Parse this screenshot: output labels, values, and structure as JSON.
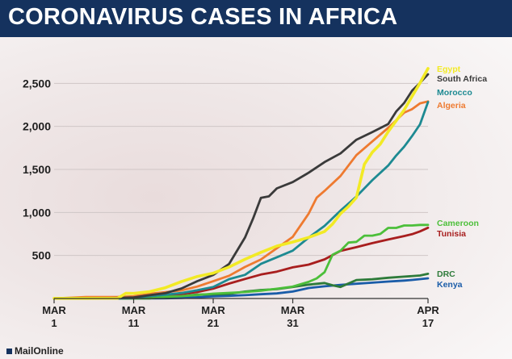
{
  "header": {
    "title": "CORONAVIRUS CASES IN AFRICA"
  },
  "credit": {
    "source": "MailOnline"
  },
  "chart_data": {
    "type": "line",
    "title": "CORONAVIRUS CASES IN AFRICA",
    "xlabel": "",
    "ylabel": "",
    "x_ticks": [
      {
        "day": 1,
        "line1": "MAR",
        "line2": "1"
      },
      {
        "day": 11,
        "line1": "MAR",
        "line2": "11"
      },
      {
        "day": 21,
        "line1": "MAR",
        "line2": "21"
      },
      {
        "day": 31,
        "line1": "MAR",
        "line2": "31"
      },
      {
        "day": 48,
        "line1": "APR",
        "line2": "17"
      }
    ],
    "y_ticks": [
      {
        "value": 500,
        "label": "500"
      },
      {
        "value": 1000,
        "label": "1,000"
      },
      {
        "value": 1500,
        "label": "1,500"
      },
      {
        "value": 2000,
        "label": "2,000"
      },
      {
        "value": 2500,
        "label": "2,500"
      }
    ],
    "xlim": [
      1,
      48
    ],
    "ylim": [
      0,
      2700
    ],
    "grid": true,
    "series": [
      {
        "name": "Egypt",
        "color": "#f2ea25",
        "points": [
          [
            1,
            2
          ],
          [
            5,
            2
          ],
          [
            9,
            3
          ],
          [
            10,
            60
          ],
          [
            11,
            59
          ],
          [
            13,
            80
          ],
          [
            15,
            126
          ],
          [
            17,
            196
          ],
          [
            19,
            256
          ],
          [
            21,
            294
          ],
          [
            23,
            366
          ],
          [
            25,
            456
          ],
          [
            27,
            536
          ],
          [
            29,
            609
          ],
          [
            31,
            656
          ],
          [
            33,
            710
          ],
          [
            35,
            779
          ],
          [
            36,
            865
          ],
          [
            37,
            985
          ],
          [
            38,
            1070
          ],
          [
            39,
            1173
          ],
          [
            40,
            1560
          ],
          [
            41,
            1699
          ],
          [
            42,
            1794
          ],
          [
            43,
            1939
          ],
          [
            44,
            2065
          ],
          [
            45,
            2190
          ],
          [
            46,
            2350
          ],
          [
            47,
            2505
          ],
          [
            48,
            2673
          ]
        ]
      },
      {
        "name": "South Africa",
        "color": "#3a3a3a",
        "points": [
          [
            1,
            0
          ],
          [
            5,
            1
          ],
          [
            9,
            7
          ],
          [
            11,
            13
          ],
          [
            13,
            38
          ],
          [
            15,
            62
          ],
          [
            17,
            116
          ],
          [
            19,
            202
          ],
          [
            21,
            274
          ],
          [
            23,
            402
          ],
          [
            25,
            709
          ],
          [
            26,
            927
          ],
          [
            27,
            1170
          ],
          [
            28,
            1187
          ],
          [
            29,
            1280
          ],
          [
            31,
            1353
          ],
          [
            33,
            1462
          ],
          [
            35,
            1585
          ],
          [
            37,
            1686
          ],
          [
            39,
            1845
          ],
          [
            41,
            1934
          ],
          [
            43,
            2028
          ],
          [
            44,
            2173
          ],
          [
            45,
            2272
          ],
          [
            46,
            2415
          ],
          [
            47,
            2506
          ],
          [
            48,
            2605
          ]
        ]
      },
      {
        "name": "Morocco",
        "color": "#1d8a92",
        "points": [
          [
            1,
            0
          ],
          [
            3,
            1
          ],
          [
            9,
            2
          ],
          [
            11,
            7
          ],
          [
            13,
            28
          ],
          [
            15,
            44
          ],
          [
            17,
            64
          ],
          [
            19,
            96
          ],
          [
            21,
            134
          ],
          [
            23,
            225
          ],
          [
            25,
            275
          ],
          [
            27,
            402
          ],
          [
            29,
            479
          ],
          [
            31,
            556
          ],
          [
            33,
            708
          ],
          [
            35,
            844
          ],
          [
            37,
            1021
          ],
          [
            39,
            1184
          ],
          [
            41,
            1374
          ],
          [
            43,
            1545
          ],
          [
            44,
            1661
          ],
          [
            45,
            1763
          ],
          [
            46,
            1888
          ],
          [
            47,
            2024
          ],
          [
            48,
            2283
          ]
        ]
      },
      {
        "name": "Algeria",
        "color": "#ee7a30",
        "points": [
          [
            1,
            1
          ],
          [
            5,
            17
          ],
          [
            9,
            19
          ],
          [
            11,
            25
          ],
          [
            13,
            54
          ],
          [
            15,
            74
          ],
          [
            17,
            94
          ],
          [
            19,
            139
          ],
          [
            21,
            201
          ],
          [
            23,
            264
          ],
          [
            25,
            367
          ],
          [
            27,
            454
          ],
          [
            29,
            584
          ],
          [
            31,
            716
          ],
          [
            33,
            986
          ],
          [
            34,
            1171
          ],
          [
            35,
            1251
          ],
          [
            37,
            1423
          ],
          [
            39,
            1666
          ],
          [
            41,
            1825
          ],
          [
            43,
            1983
          ],
          [
            44,
            2070
          ],
          [
            45,
            2160
          ],
          [
            46,
            2200
          ],
          [
            47,
            2268
          ],
          [
            48,
            2290
          ]
        ]
      },
      {
        "name": "Cameroon",
        "color": "#4cbf3a",
        "points": [
          [
            1,
            0
          ],
          [
            5,
            1
          ],
          [
            13,
            2
          ],
          [
            15,
            20
          ],
          [
            17,
            27
          ],
          [
            19,
            40
          ],
          [
            21,
            56
          ],
          [
            23,
            66
          ],
          [
            25,
            75
          ],
          [
            27,
            91
          ],
          [
            29,
            113
          ],
          [
            31,
            139
          ],
          [
            33,
            193
          ],
          [
            34,
            233
          ],
          [
            35,
            306
          ],
          [
            36,
            509
          ],
          [
            37,
            555
          ],
          [
            38,
            650
          ],
          [
            39,
            658
          ],
          [
            40,
            730
          ],
          [
            41,
            730
          ],
          [
            42,
            750
          ],
          [
            43,
            820
          ],
          [
            44,
            820
          ],
          [
            45,
            848
          ],
          [
            46,
            848
          ],
          [
            47,
            855
          ],
          [
            48,
            855
          ]
        ]
      },
      {
        "name": "Tunisia",
        "color": "#a81e1e",
        "points": [
          [
            1,
            0
          ],
          [
            3,
            1
          ],
          [
            9,
            5
          ],
          [
            11,
            16
          ],
          [
            13,
            20
          ],
          [
            15,
            29
          ],
          [
            17,
            54
          ],
          [
            19,
            75
          ],
          [
            21,
            114
          ],
          [
            23,
            173
          ],
          [
            25,
            227
          ],
          [
            27,
            278
          ],
          [
            29,
            312
          ],
          [
            31,
            362
          ],
          [
            33,
            394
          ],
          [
            35,
            455
          ],
          [
            37,
            553
          ],
          [
            39,
            596
          ],
          [
            41,
            643
          ],
          [
            43,
            685
          ],
          [
            45,
            726
          ],
          [
            46,
            747
          ],
          [
            47,
            780
          ],
          [
            48,
            822
          ]
        ]
      },
      {
        "name": "DRC",
        "color": "#2e7b3a",
        "points": [
          [
            1,
            0
          ],
          [
            11,
            1
          ],
          [
            13,
            3
          ],
          [
            15,
            14
          ],
          [
            17,
            30
          ],
          [
            19,
            45
          ],
          [
            21,
            48
          ],
          [
            23,
            54
          ],
          [
            25,
            81
          ],
          [
            27,
            98
          ],
          [
            29,
            109
          ],
          [
            31,
            134
          ],
          [
            33,
            161
          ],
          [
            35,
            180
          ],
          [
            36,
            154
          ],
          [
            37,
            134
          ],
          [
            39,
            215
          ],
          [
            41,
            223
          ],
          [
            43,
            241
          ],
          [
            45,
            254
          ],
          [
            47,
            267
          ],
          [
            48,
            287
          ]
        ]
      },
      {
        "name": "Kenya",
        "color": "#1a5ca8",
        "points": [
          [
            1,
            0
          ],
          [
            13,
            1
          ],
          [
            15,
            3
          ],
          [
            17,
            7
          ],
          [
            19,
            15
          ],
          [
            21,
            25
          ],
          [
            23,
            31
          ],
          [
            25,
            38
          ],
          [
            27,
            50
          ],
          [
            29,
            59
          ],
          [
            31,
            81
          ],
          [
            33,
            122
          ],
          [
            35,
            142
          ],
          [
            37,
            158
          ],
          [
            39,
            172
          ],
          [
            41,
            184
          ],
          [
            43,
            197
          ],
          [
            45,
            208
          ],
          [
            46,
            216
          ],
          [
            47,
            225
          ],
          [
            48,
            234
          ]
        ]
      }
    ],
    "legend": [
      {
        "label": "Egypt",
        "color": "#f2ea25",
        "value": 2673
      },
      {
        "label": "South Africa",
        "color": "#3a3a3a",
        "value": 2560
      },
      {
        "label": "Morocco",
        "color": "#1d8a92",
        "value": 2400
      },
      {
        "label": "Algeria",
        "color": "#ee7a30",
        "value": 2250
      },
      {
        "label": "Cameroon",
        "color": "#4cbf3a",
        "value": 880
      },
      {
        "label": "Tunisia",
        "color": "#a81e1e",
        "value": 760
      },
      {
        "label": "DRC",
        "color": "#2e7b3a",
        "value": 290
      },
      {
        "label": "Kenya",
        "color": "#1a5ca8",
        "value": 170
      }
    ],
    "legend_placement": "right"
  }
}
